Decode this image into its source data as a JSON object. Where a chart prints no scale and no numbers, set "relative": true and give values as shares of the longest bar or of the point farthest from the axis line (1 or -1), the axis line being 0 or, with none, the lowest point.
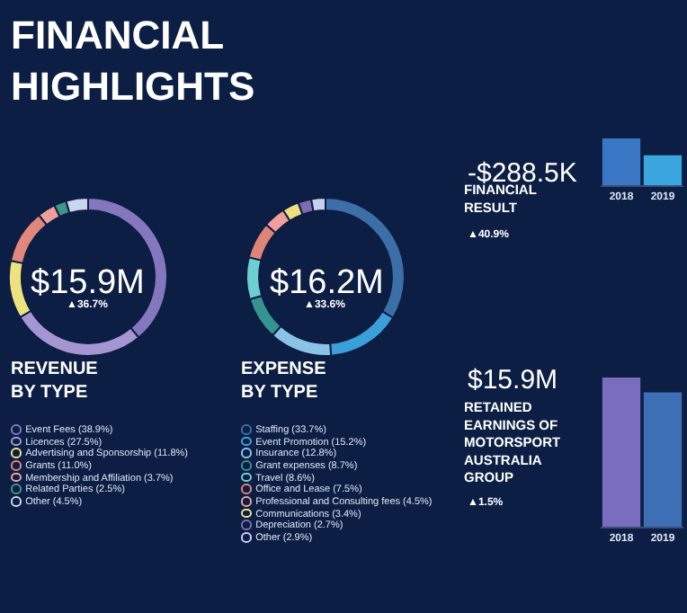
{
  "chart_data": [
    {
      "type": "donut",
      "title": "REVENUE BY TYPE",
      "categories": [
        "Event Fees (38.9%)",
        "Licences (27.5%)",
        "Advertising and Sponsorship (11.8%)",
        "Grants (11.0%)",
        "Membership and Affiliation (3.7%)",
        "Related Parties (2.5%)",
        "Other (4.5%)"
      ],
      "values": [
        38.9,
        27.5,
        11.8,
        11.0,
        3.7,
        2.5,
        4.5
      ],
      "colors": [
        "#8577bd",
        "#a596d3",
        "#ece27e",
        "#e2877c",
        "#ee9f9c",
        "#3d958b",
        "#c9d6ef"
      ],
      "legend": "bottom",
      "annotations": [
        "FINANCIAL HIGHLIGHTS",
        "$15.9M",
        "▲36.7%"
      ]
    },
    {
      "type": "donut",
      "title": "EXPENSE BY TYPE",
      "categories": [
        "Staffing (33.7%)",
        "Event Promotion (15.2%)",
        "Insurance (12.8%)",
        "Grant expenses (8.7%)",
        "Travel (8.6%)",
        "Office and Lease (7.5%)",
        "Professional and Consulting fees (4.5%)",
        "Communications (3.4%)",
        "Depreciation (2.7%)",
        "Other (2.9%)"
      ],
      "values": [
        33.7,
        15.2,
        12.8,
        8.7,
        8.6,
        7.5,
        4.5,
        3.4,
        2.7,
        2.9
      ],
      "colors": [
        "#3c6ea8",
        "#3b9fd8",
        "#8bc3e8",
        "#35948f",
        "#6dcfcf",
        "#df8478",
        "#ef9f9c",
        "#efe07e",
        "#7d6db0",
        "#c8cff0"
      ],
      "legend": "bottom",
      "annotations": [
        "$16.2M",
        "▲33.6%"
      ]
    },
    {
      "type": "bar",
      "title": "FINANCIAL RESULT",
      "categories": [
        "2018",
        "2019"
      ],
      "values": [
        1,
        0.64
      ],
      "colors": [
        "#3a78c6",
        "#3aa7df"
      ],
      "relative": true,
      "annotations": [
        "-$288.5K",
        "▲40.9%"
      ]
    },
    {
      "type": "bar",
      "title": "RETAINED EARNINGS OF MOTORSPORT AUSTRALIA GROUP",
      "categories": [
        "2018",
        "2019"
      ],
      "values": [
        1,
        0.9
      ],
      "colors": [
        "#7a6cbf",
        "#3d6fb5"
      ],
      "relative": true,
      "annotations": [
        "$15.9M",
        "▲1.5%"
      ]
    }
  ]
}
